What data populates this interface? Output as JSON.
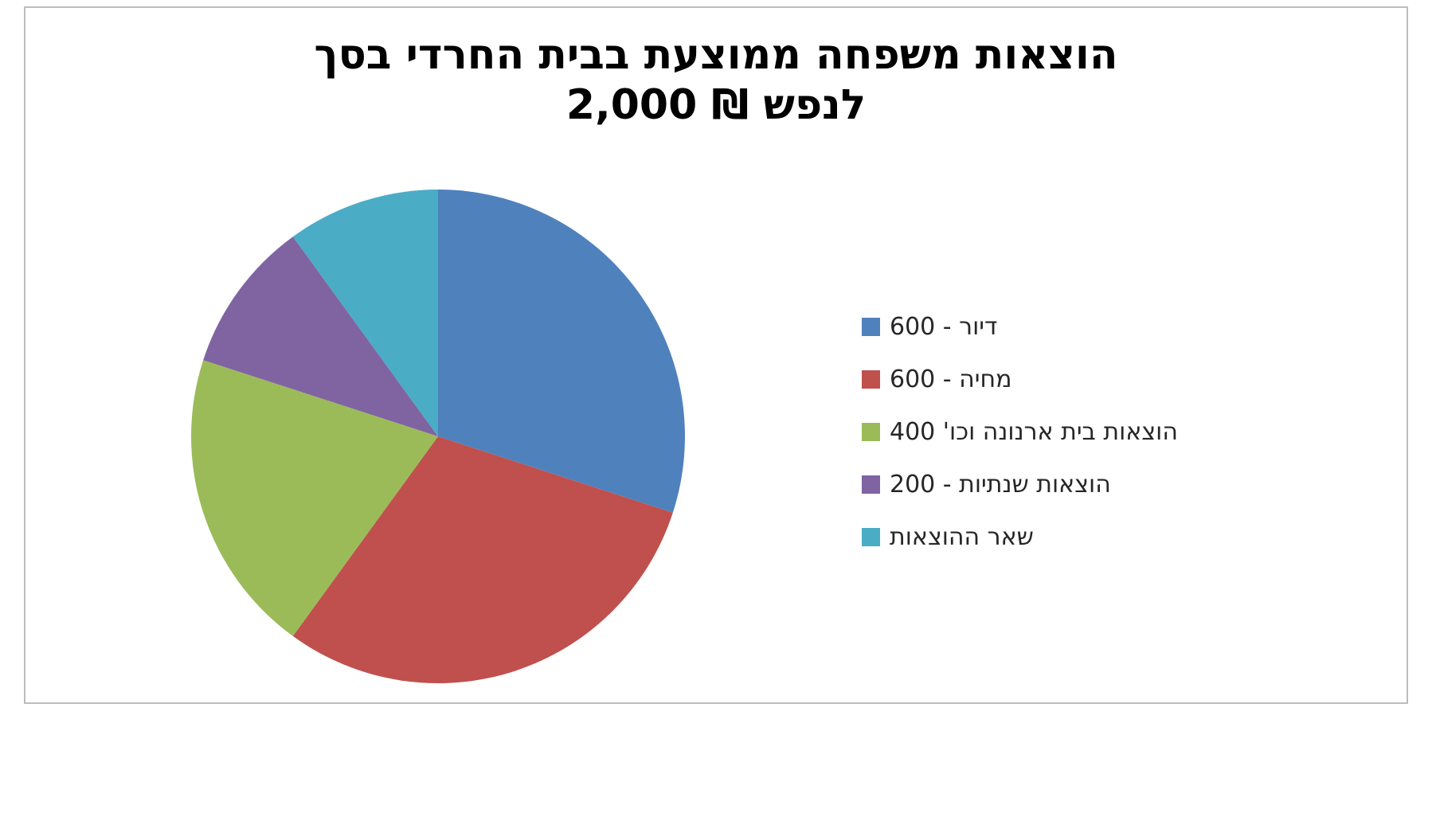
{
  "chart_data": {
    "type": "pie",
    "title": "הוצאות משפחה ממוצעת בבית החרדי בסך 2,000 ₪ לנפש",
    "title_line1": "הוצאות משפחה ממוצעת בבית החרדי בסך",
    "title_line2": "2,000 ₪ לנפש",
    "total": 2000,
    "start_angle_deg": 0,
    "direction": "clockwise",
    "legend_position": "right",
    "grid": false,
    "slices": [
      {
        "label": "דיור - 600",
        "value": 600,
        "color": "#4F81BD"
      },
      {
        "label": "מחיה - 600",
        "value": 600,
        "color": "#C0504D"
      },
      {
        "label": "הוצאות בית ארנונה וכו' 400",
        "value": 400,
        "color": "#9BBB59"
      },
      {
        "label": "הוצאות שנתיות - 200",
        "value": 200,
        "color": "#8064A2"
      },
      {
        "label": "שאר ההוצאות",
        "value": 200,
        "color": "#4BACC6"
      }
    ]
  }
}
